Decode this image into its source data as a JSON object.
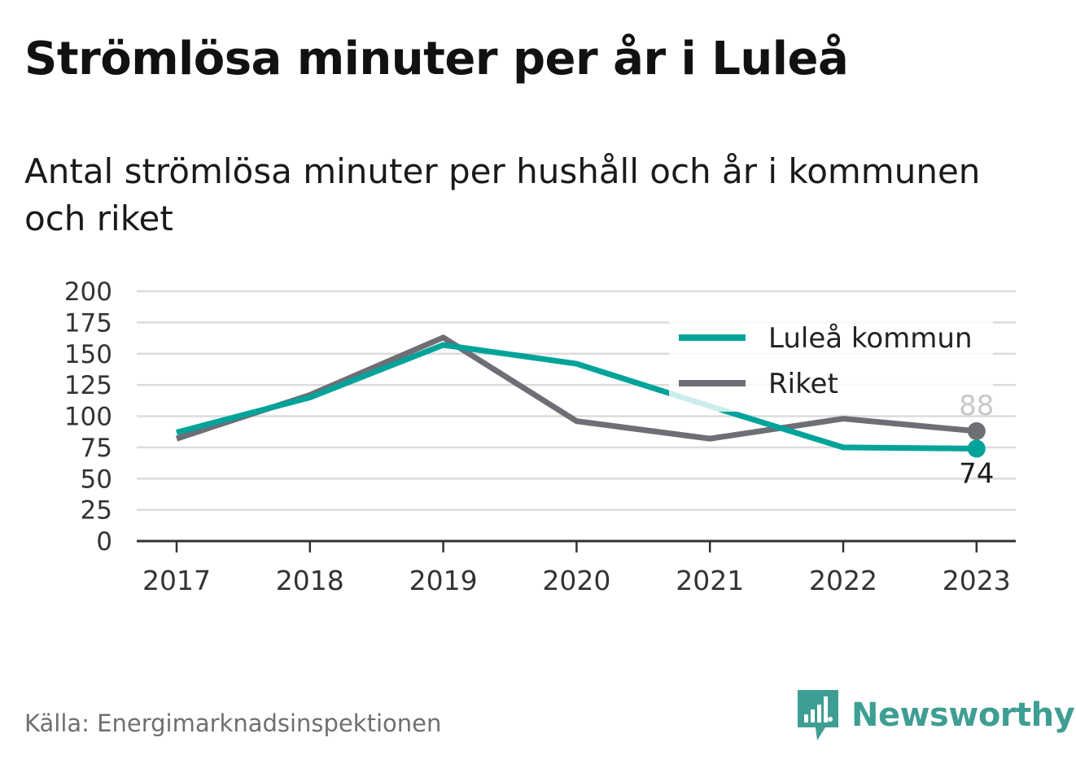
{
  "title": "Strömlösa minuter per år i Luleå",
  "subtitle": "Antal strömlösa minuter per hushåll och år i kommunen och riket",
  "source": "Källa: Energimarknadsinspektionen",
  "brand": {
    "name": "Newsworthy",
    "icon": "newsworthy-logo-icon",
    "color": "#3f9e93"
  },
  "colors": {
    "lulea": "#00a39a",
    "riket": "#6e6e75",
    "grid": "#dcdcdc",
    "axis": "#333333"
  },
  "chart_data": {
    "type": "line",
    "x": [
      "2017",
      "2018",
      "2019",
      "2020",
      "2021",
      "2022",
      "2023"
    ],
    "yticks": [
      "0",
      "25",
      "50",
      "75",
      "100",
      "125",
      "150",
      "175",
      "200"
    ],
    "ylim": [
      0,
      200
    ],
    "grid": true,
    "legend": "top-right",
    "series": [
      {
        "name": "Luleå kommun",
        "key": "lulea",
        "values": [
          87,
          115,
          157,
          142,
          108,
          75,
          74
        ],
        "end_label": "74"
      },
      {
        "name": "Riket",
        "key": "riket",
        "values": [
          82,
          117,
          163,
          96,
          82,
          98,
          88
        ],
        "end_label": "88"
      }
    ]
  }
}
